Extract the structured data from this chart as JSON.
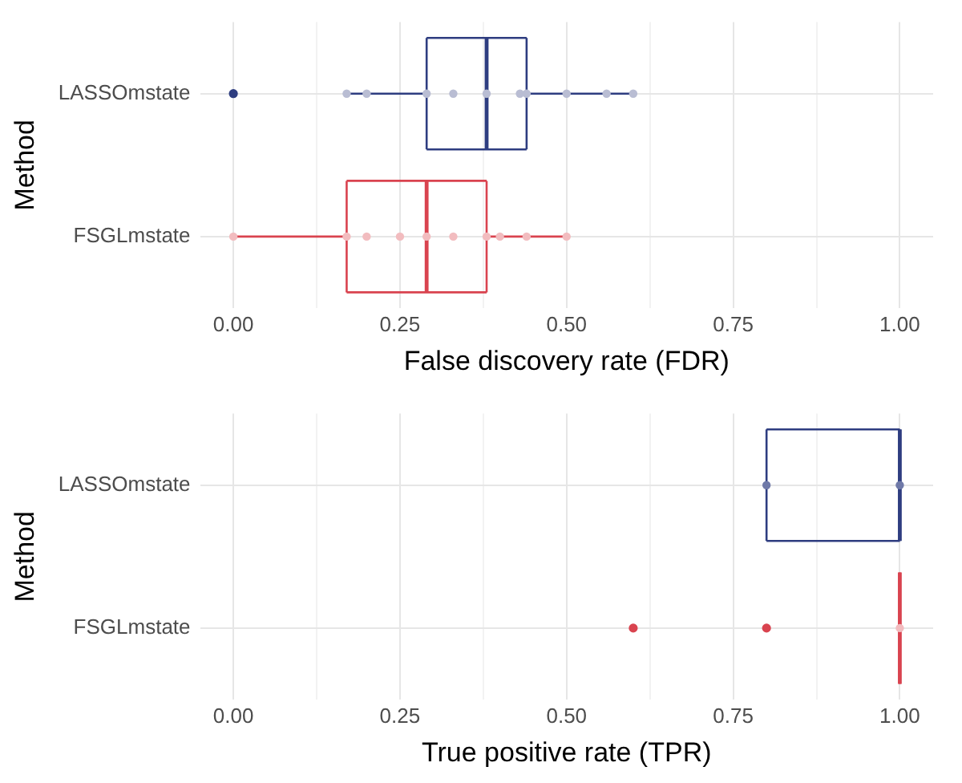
{
  "chart_data": [
    {
      "type": "box",
      "orientation": "horizontal",
      "categories": [
        "LASSOmstate",
        "FSGLmstate"
      ],
      "xlabel": "False discovery rate (FDR)",
      "ylabel": "Method",
      "xlim": [
        -0.05,
        1.05
      ],
      "xticks": [
        {
          "value": 0,
          "label": "0.00"
        },
        {
          "value": 0.125,
          "label": null
        },
        {
          "value": 0.25,
          "label": "0.25"
        },
        {
          "value": 0.375,
          "label": null
        },
        {
          "value": 0.5,
          "label": "0.50"
        },
        {
          "value": 0.625,
          "label": null
        },
        {
          "value": 0.75,
          "label": "0.75"
        },
        {
          "value": 0.875,
          "label": null
        },
        {
          "value": 1,
          "label": "1.00"
        }
      ],
      "grid": true,
      "legend": false,
      "series": [
        {
          "type": "box",
          "colors": [
            "#2e3d80",
            "#d9434f"
          ],
          "boxes": [
            {
              "low": 0.17,
              "q1": 0.29,
              "median": 0.38,
              "q3": 0.44,
              "high": 0.6,
              "outliers": [
                0
              ]
            },
            {
              "low": 0,
              "q1": 0.17,
              "median": 0.29,
              "q3": 0.38,
              "high": 0.5
            }
          ]
        },
        {
          "type": "scatter",
          "color": "#b9bdd3",
          "x": [
            "LASSOmstate",
            "LASSOmstate",
            "LASSOmstate",
            "LASSOmstate",
            "LASSOmstate",
            "LASSOmstate",
            "LASSOmstate",
            "LASSOmstate",
            "LASSOmstate",
            "LASSOmstate"
          ],
          "values": [
            0.17,
            0.2,
            0.29,
            0.33,
            0.38,
            0.43,
            0.44,
            0.5,
            0.56,
            0.6
          ]
        },
        {
          "type": "scatter",
          "color": "#f2bcbf",
          "x": [
            "FSGLmstate",
            "FSGLmstate",
            "FSGLmstate",
            "FSGLmstate",
            "FSGLmstate",
            "FSGLmstate",
            "FSGLmstate",
            "FSGLmstate",
            "FSGLmstate",
            "FSGLmstate"
          ],
          "values": [
            0,
            0.17,
            0.2,
            0.25,
            0.29,
            0.33,
            0.38,
            0.4,
            0.44,
            0.5
          ]
        }
      ]
    },
    {
      "type": "box",
      "orientation": "horizontal",
      "categories": [
        "LASSOmstate",
        "FSGLmstate"
      ],
      "xlabel": "True positive rate (TPR)",
      "ylabel": "Method",
      "xlim": [
        -0.05,
        1.05
      ],
      "xticks": [
        {
          "value": 0,
          "label": "0.00"
        },
        {
          "value": 0.125,
          "label": null
        },
        {
          "value": 0.25,
          "label": "0.25"
        },
        {
          "value": 0.375,
          "label": null
        },
        {
          "value": 0.5,
          "label": "0.50"
        },
        {
          "value": 0.625,
          "label": null
        },
        {
          "value": 0.75,
          "label": "0.75"
        },
        {
          "value": 0.875,
          "label": null
        },
        {
          "value": 1,
          "label": "1.00"
        }
      ],
      "grid": true,
      "legend": false,
      "series": [
        {
          "type": "box",
          "colors": [
            "#2e3d80",
            "#d9434f"
          ],
          "boxes": [
            {
              "low": 0.8,
              "q1": 0.8,
              "median": 1,
              "q3": 1,
              "high": 1
            },
            {
              "low": 1,
              "q1": 1,
              "median": 1,
              "q3": 1,
              "high": 1,
              "outliers": [
                0.6,
                0.8
              ]
            }
          ]
        },
        {
          "type": "scatter",
          "color": "#6f79a8",
          "x": [
            "LASSOmstate",
            "LASSOmstate"
          ],
          "values": [
            0.8,
            1
          ]
        },
        {
          "type": "scatter",
          "color": "#f2bcbf",
          "x": [
            "FSGLmstate"
          ],
          "values": [
            1
          ]
        }
      ]
    }
  ]
}
